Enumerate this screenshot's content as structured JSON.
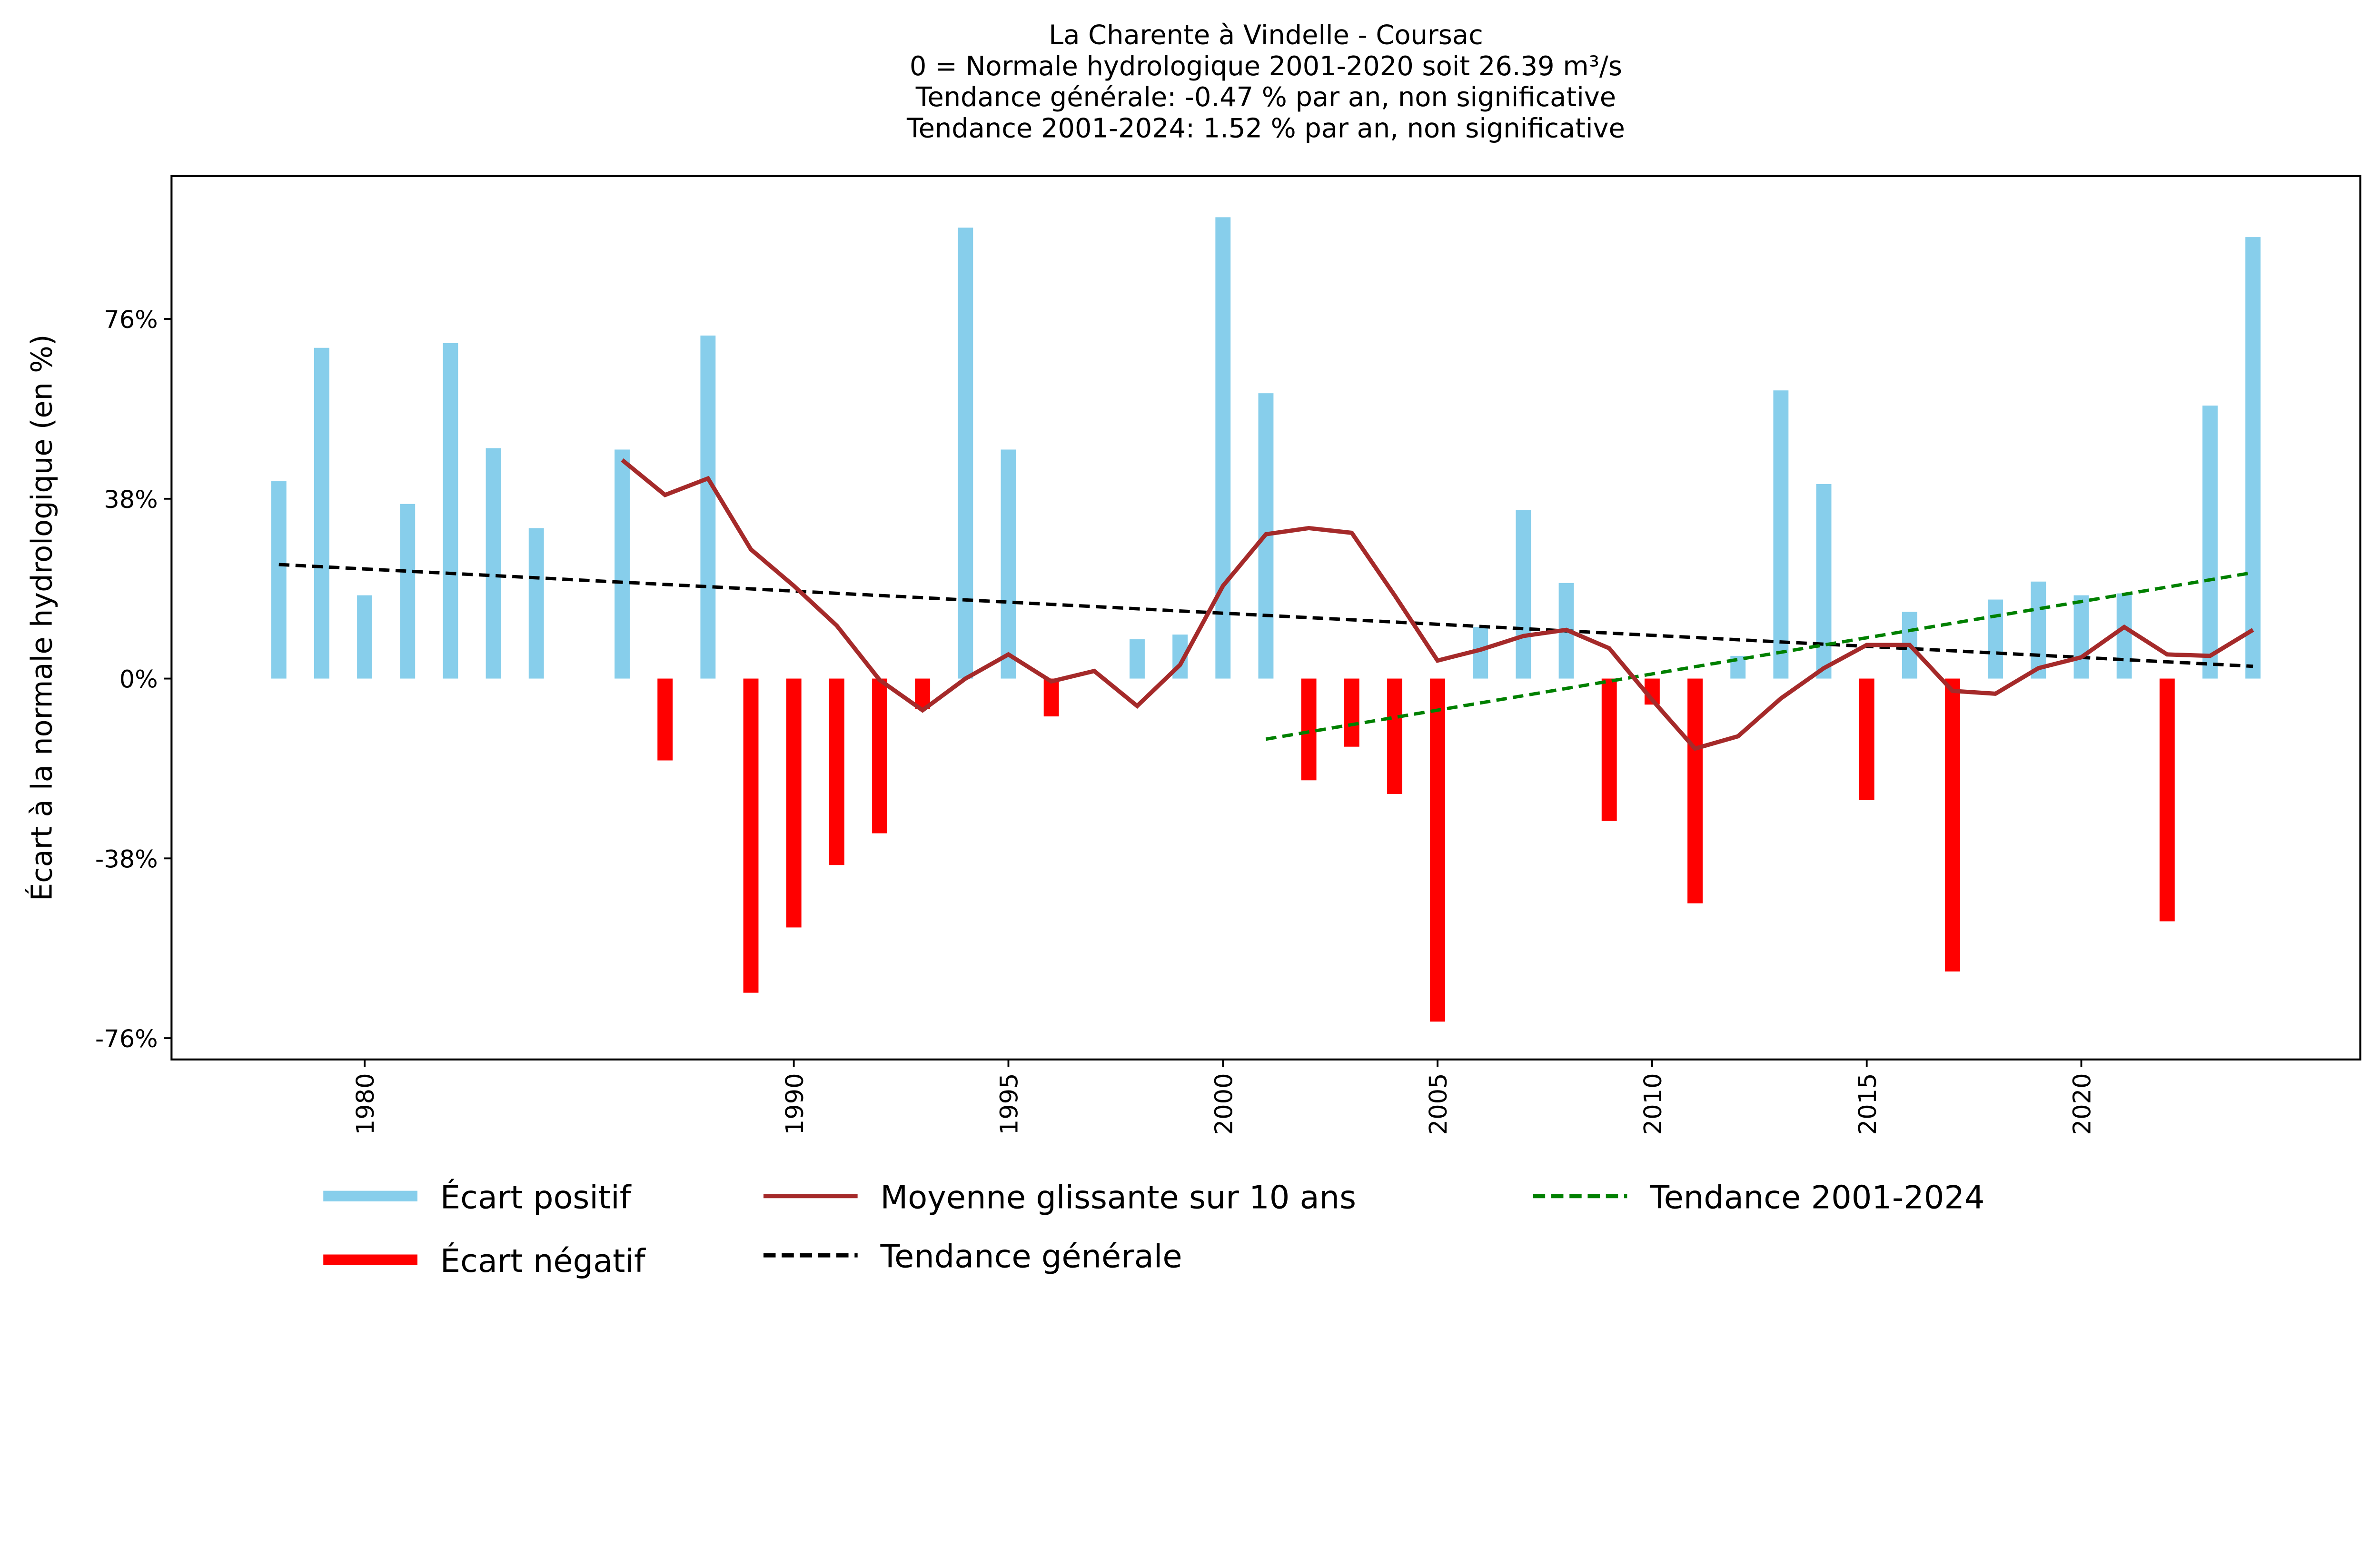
{
  "chart_data": {
    "type": "bar",
    "title_lines": [
      "La Charente à Vindelle - Coursac",
      "0 = Normale hydrologique 2001-2020 soit 26.39 m³/s",
      "Tendance générale: -0.47 % par an, non significative",
      "Tendance 2001-2024: 1.52 % par an, non significative"
    ],
    "xlabel": "",
    "ylabel": "Écart à la normale hydrologique (en %)",
    "xlim": [
      1975.5,
      2026.5
    ],
    "ylim": [
      -80.5,
      106.2
    ],
    "yticks": [
      -76,
      -38,
      0,
      38,
      76
    ],
    "ytick_labels": [
      "-76%",
      "-38%",
      "0%",
      "38%",
      "76%"
    ],
    "xticks": [
      1980,
      1990,
      1995,
      2000,
      2005,
      2010,
      2015,
      2020
    ],
    "xtick_labels": [
      "1980",
      "1990",
      "1995",
      "2000",
      "2005",
      "2010",
      "2015",
      "2020"
    ],
    "colors": {
      "positive": "#87ceeb",
      "negative": "#ff0000",
      "moving_avg": "#a52a2a",
      "trend_all": "#000000",
      "trend_recent": "#008000"
    },
    "bars": {
      "years": [
        1978,
        1979,
        1980,
        1981,
        1982,
        1983,
        1984,
        1986,
        1987,
        1988,
        1989,
        1990,
        1991,
        1992,
        1993,
        1994,
        1995,
        1996,
        1998,
        1999,
        2000,
        2001,
        2002,
        2003,
        2004,
        2005,
        2006,
        2007,
        2008,
        2009,
        2010,
        2011,
        2012,
        2013,
        2014,
        2015,
        2016,
        2017,
        2018,
        2019,
        2020,
        2021,
        2022,
        2023,
        2024
      ],
      "values": [
        41.7,
        69.9,
        17.6,
        36.9,
        70.9,
        48.7,
        31.8,
        48.4,
        -17.3,
        72.5,
        -66.4,
        -52.6,
        -39.4,
        -32.7,
        -6.4,
        95.3,
        48.4,
        -8.0,
        8.3,
        9.3,
        97.5,
        60.3,
        -21.5,
        -14.4,
        -24.4,
        -72.5,
        10.9,
        35.6,
        20.2,
        -30.1,
        -5.5,
        -47.5,
        4.8,
        60.9,
        41.1,
        -25.7,
        14.1,
        -61.9,
        16.7,
        20.5,
        17.6,
        18.0,
        -51.3,
        57.7,
        93.3
      ]
    },
    "moving_average": {
      "years": [
        1986,
        1987,
        1988,
        1989,
        1990,
        1991,
        1992,
        1993,
        1994,
        1995,
        1996,
        1997,
        1998,
        1999,
        2000,
        2001,
        2002,
        2003,
        2004,
        2005,
        2006,
        2007,
        2008,
        2009,
        2010,
        2011,
        2012,
        2013,
        2014,
        2015,
        2016,
        2017,
        2018,
        2019,
        2020,
        2021,
        2022,
        2023,
        2024
      ],
      "values": [
        46.2,
        38.8,
        42.3,
        27.3,
        19.6,
        11.2,
        -0.3,
        -6.7,
        0.0,
        5.1,
        -0.6,
        1.6,
        -5.8,
        2.9,
        19.6,
        30.5,
        31.8,
        30.8,
        17.6,
        3.8,
        6.1,
        9.0,
        10.3,
        6.4,
        -4.5,
        -14.8,
        -12.2,
        -4.2,
        2.2,
        7.1,
        7.1,
        -2.6,
        -3.2,
        2.2,
        4.5,
        10.9,
        5.1,
        4.8,
        10.3
      ]
    },
    "trend_general": {
      "years": [
        1978,
        2024
      ],
      "values": [
        24.1,
        2.6
      ]
    },
    "trend_recent": {
      "years": [
        2001,
        2024
      ],
      "values": [
        -12.8,
        22.4
      ]
    },
    "legend": {
      "placement": "bottom",
      "entries": [
        "Écart positif",
        "Écart négatif",
        "Moyenne glissante sur 10 ans",
        "Tendance générale",
        "Tendance 2001-2024"
      ]
    }
  }
}
